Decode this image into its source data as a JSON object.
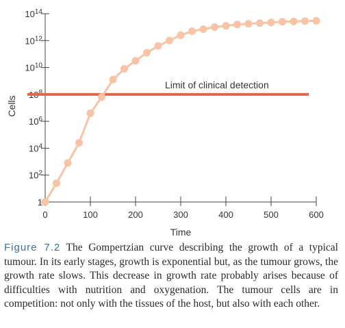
{
  "chart_data": {
    "type": "line",
    "xlabel": "Time",
    "ylabel": "Cells",
    "xlim": [
      0,
      600
    ],
    "ylim_log10": [
      0,
      14
    ],
    "yscale": "log",
    "x_ticks": [
      "0",
      "100",
      "200",
      "300",
      "400",
      "500",
      "600"
    ],
    "y_ticks": [
      {
        "base": "1",
        "exp": ""
      },
      {
        "base": "10",
        "exp": "2"
      },
      {
        "base": "10",
        "exp": "4"
      },
      {
        "base": "10",
        "exp": "6"
      },
      {
        "base": "10",
        "exp": "8"
      },
      {
        "base": "10",
        "exp": "10"
      },
      {
        "base": "10",
        "exp": "12"
      },
      {
        "base": "10",
        "exp": "14"
      }
    ],
    "series_color": "#f9c3a6",
    "limit_color": "#e0684a",
    "series": [
      {
        "x": [
          0,
          25,
          50,
          75,
          100,
          125,
          150,
          175,
          200,
          225,
          250,
          275,
          300,
          325,
          350,
          375,
          400,
          425,
          450,
          475,
          500,
          525,
          550,
          575,
          600
        ],
        "log10_y": [
          0,
          1.4,
          2.9,
          4.4,
          6.6,
          7.8,
          9.1,
          9.9,
          10.5,
          11.1,
          11.6,
          12.0,
          12.4,
          12.7,
          12.85,
          13.0,
          13.1,
          13.2,
          13.25,
          13.3,
          13.35,
          13.4,
          13.42,
          13.45,
          13.47
        ]
      }
    ],
    "limit_line": {
      "log10_y": 8,
      "label": "Limit of clinical detection"
    }
  },
  "caption": {
    "label": "Figure 7.2",
    "text": " The Gompertzian curve describing the growth of a typical tumour. In its early stages, growth is exponential but, as the tumour grows, the growth rate slows. This decrease in growth rate probably arises because of difficulties with nutrition and oxygenation. The tumour cells are in competition: not only with the tissues of the host, but also with each other."
  }
}
